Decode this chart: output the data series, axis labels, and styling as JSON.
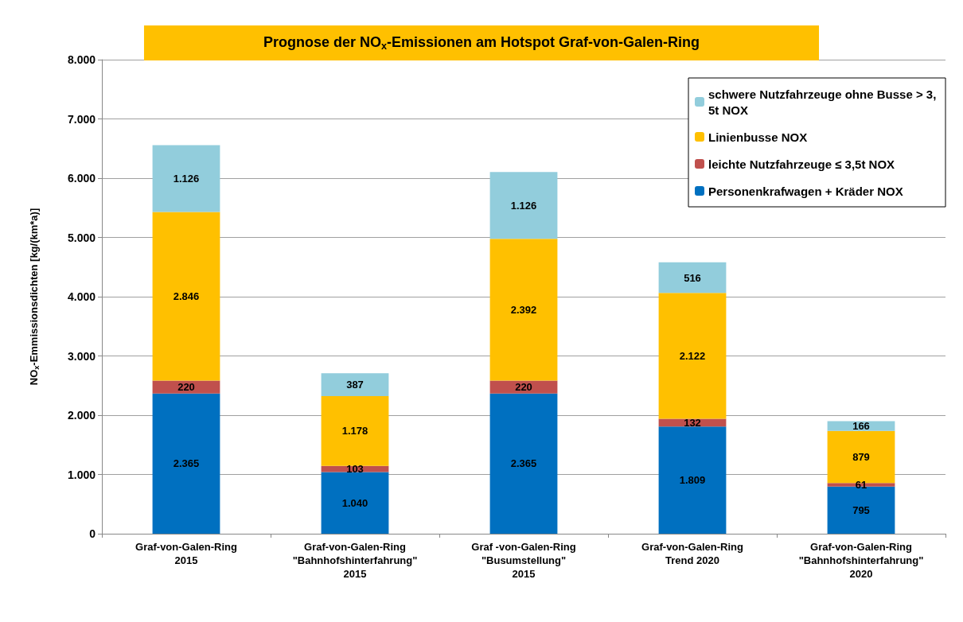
{
  "chart_data": {
    "type": "bar",
    "stacked": true,
    "title": "Prognose der NO$_{x}$-Emissionen am Hotspot Graf-von-Galen-Ring",
    "ylabel": "NO$_{x}$-Emmissionsdichten [kg/(km*a)]",
    "categories": [
      "Graf-von-Galen-Ring\n2015",
      "Graf-von-Galen-Ring\n\"Bahnhofshinterfahrung\"\n2015",
      "Graf -von-Galen-Ring\n\"Busumstellung\"\n2015",
      "Graf-von-Galen-Ring\nTrend 2020",
      "Graf-von-Galen-Ring\n\"Bahnhofshinterfahrung\"\n2020"
    ],
    "series": [
      {
        "name": "Personenkrafwagen + Kräder NOX",
        "color": "#0070c0",
        "values": [
          2365,
          1040,
          2365,
          1809,
          795
        ],
        "value_labels": [
          "2.365",
          "1.040",
          "2.365",
          "1.809",
          "795"
        ]
      },
      {
        "name": "leichte Nutzfahrzeuge ≤ 3,5t NOX",
        "color": "#c0504d",
        "values": [
          220,
          103,
          220,
          132,
          61
        ],
        "value_labels": [
          "220",
          "103",
          "220",
          "132",
          "61"
        ]
      },
      {
        "name": "Linienbusse NOX",
        "color": "#ffc000",
        "values": [
          2846,
          1178,
          2392,
          2122,
          879
        ],
        "value_labels": [
          "2.846",
          "1.178",
          "2.392",
          "2.122",
          "879"
        ]
      },
      {
        "name": "schwere Nutzfahrzeuge ohne Busse > 3,5t NOX",
        "color": "#92cddc",
        "values": [
          1126,
          387,
          1126,
          516,
          166
        ],
        "value_labels": [
          "1.126",
          "387",
          "1.126",
          "516",
          "166"
        ]
      }
    ],
    "ylim": [
      0,
      8000
    ],
    "yticks": [
      {
        "value": 0,
        "label": "0"
      },
      {
        "value": 1000,
        "label": "1.000"
      },
      {
        "value": 2000,
        "label": "2.000"
      },
      {
        "value": 3000,
        "label": "3.000"
      },
      {
        "value": 4000,
        "label": "4.000"
      },
      {
        "value": 5000,
        "label": "5.000"
      },
      {
        "value": 6000,
        "label": "6.000"
      },
      {
        "value": 7000,
        "label": "7.000"
      },
      {
        "value": 8000,
        "label": "8.000"
      }
    ],
    "grid": "y",
    "legend": "top right"
  }
}
